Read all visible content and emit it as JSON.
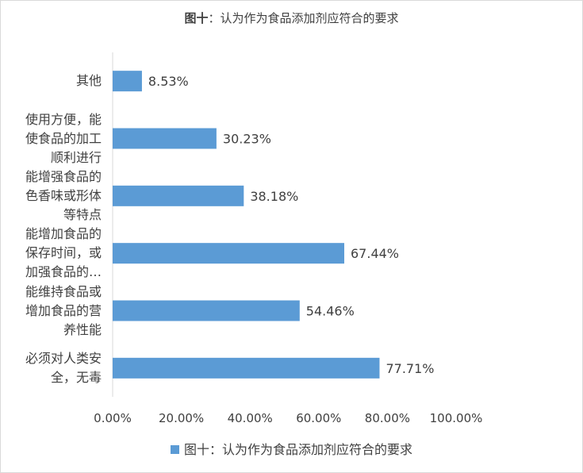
{
  "chart_data": {
    "type": "bar",
    "orientation": "horizontal",
    "title_bold": "图十",
    "title_rest": "：认为作为食品添加剂应符合的要求",
    "categories": [
      "其他",
      "使用方便，能使食品的加工顺利进行",
      "能增强食品的色香味或形体等特点",
      "能增加食品的保存时间，或加强食品的…",
      "能维持食品或增加食品的营养性能",
      "必须对人类安全，无毒"
    ],
    "category_lines": [
      [
        "其他"
      ],
      [
        "使用方便，能",
        "使食品的加工",
        "顺利进行"
      ],
      [
        "能增强食品的",
        "色香味或形体",
        "等特点"
      ],
      [
        "能增加食品的",
        "保存时间，或",
        "加强食品的…"
      ],
      [
        "能维持食品或",
        "增加食品的营",
        "养性能"
      ],
      [
        "必须对人类安",
        "全，无毒"
      ]
    ],
    "series": [
      {
        "name": "图十：认为作为食品添加剂应符合的要求",
        "values": [
          8.53,
          30.23,
          38.18,
          67.44,
          54.46,
          77.71
        ],
        "labels": [
          "8.53%",
          "30.23%",
          "38.18%",
          "67.44%",
          "54.46%",
          "77.71%"
        ]
      }
    ],
    "xlim": [
      0,
      100
    ],
    "x_ticks": [
      "0.00%",
      "20.00%",
      "40.00%",
      "60.00%",
      "80.00%",
      "100.00%"
    ],
    "grid": false,
    "legend_position": "bottom",
    "bar_color": "#5b9bd5"
  }
}
